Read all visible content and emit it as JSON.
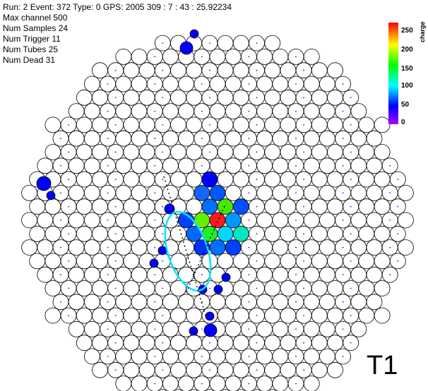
{
  "event_info": {
    "line1": "Run: 2 Event: 372  Type: 0 GPS: 2005 309 : 7 : 43 : 25.92234",
    "line2": "Max channel 500",
    "line3": "Num Samples 24",
    "line4": "Num Trigger 11",
    "line5": "Num Tubes 25",
    "line6": "Num Dead 31"
  },
  "telescope_label": "T1",
  "colorbar": {
    "label": "charge",
    "ticks": [
      "250",
      "200",
      "150",
      "100",
      "50",
      "0"
    ],
    "colors": [
      "#ff0000",
      "#ffff00",
      "#00ff00",
      "#00ffff",
      "#0000ff",
      "#aa00ff"
    ]
  },
  "colors": {
    "tube_outline": "#000000",
    "dead_dot": "#4400ff",
    "hillas_ellipse": "#00e5ff"
  }
}
